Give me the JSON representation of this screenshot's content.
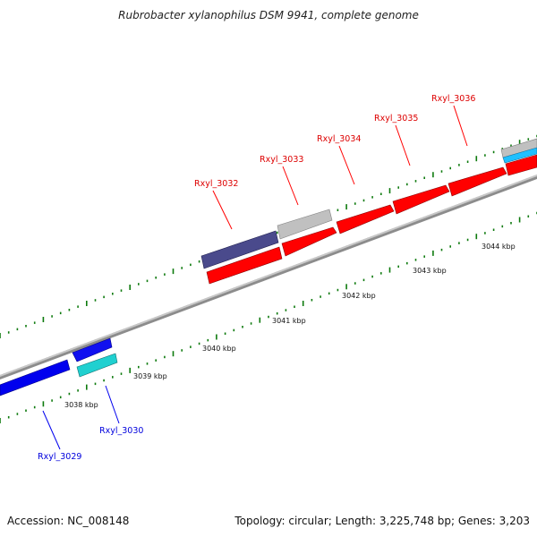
{
  "title": "Rubrobacter xylanophilus DSM 9941, complete genome",
  "footer": {
    "accession": "Accession: NC_008148",
    "summary": "Topology: circular; Length: 3,225,748 bp; Genes: 3,203"
  },
  "colors": {
    "forward_gene": "#ff0000",
    "reverse_gene": "#0000ee",
    "cds_gray": "#c0c0c0",
    "cds_navy": "#4a4a8c",
    "rna_cyan": "#20d0d0",
    "tick_green": "#0d7a0d",
    "backbone": "#8c8c8c"
  },
  "kbp_labels": [
    "3038 kbp",
    "3039 kbp",
    "3040 kbp",
    "3041 kbp",
    "3042 kbp",
    "3043 kbp",
    "3044 kbp"
  ],
  "gene_labels": {
    "forward": [
      "Rxyl_3032",
      "Rxyl_3033",
      "Rxyl_3034",
      "Rxyl_3035",
      "Rxyl_3036"
    ],
    "reverse": [
      "Rxyl_3029",
      "Rxyl_3030"
    ]
  }
}
